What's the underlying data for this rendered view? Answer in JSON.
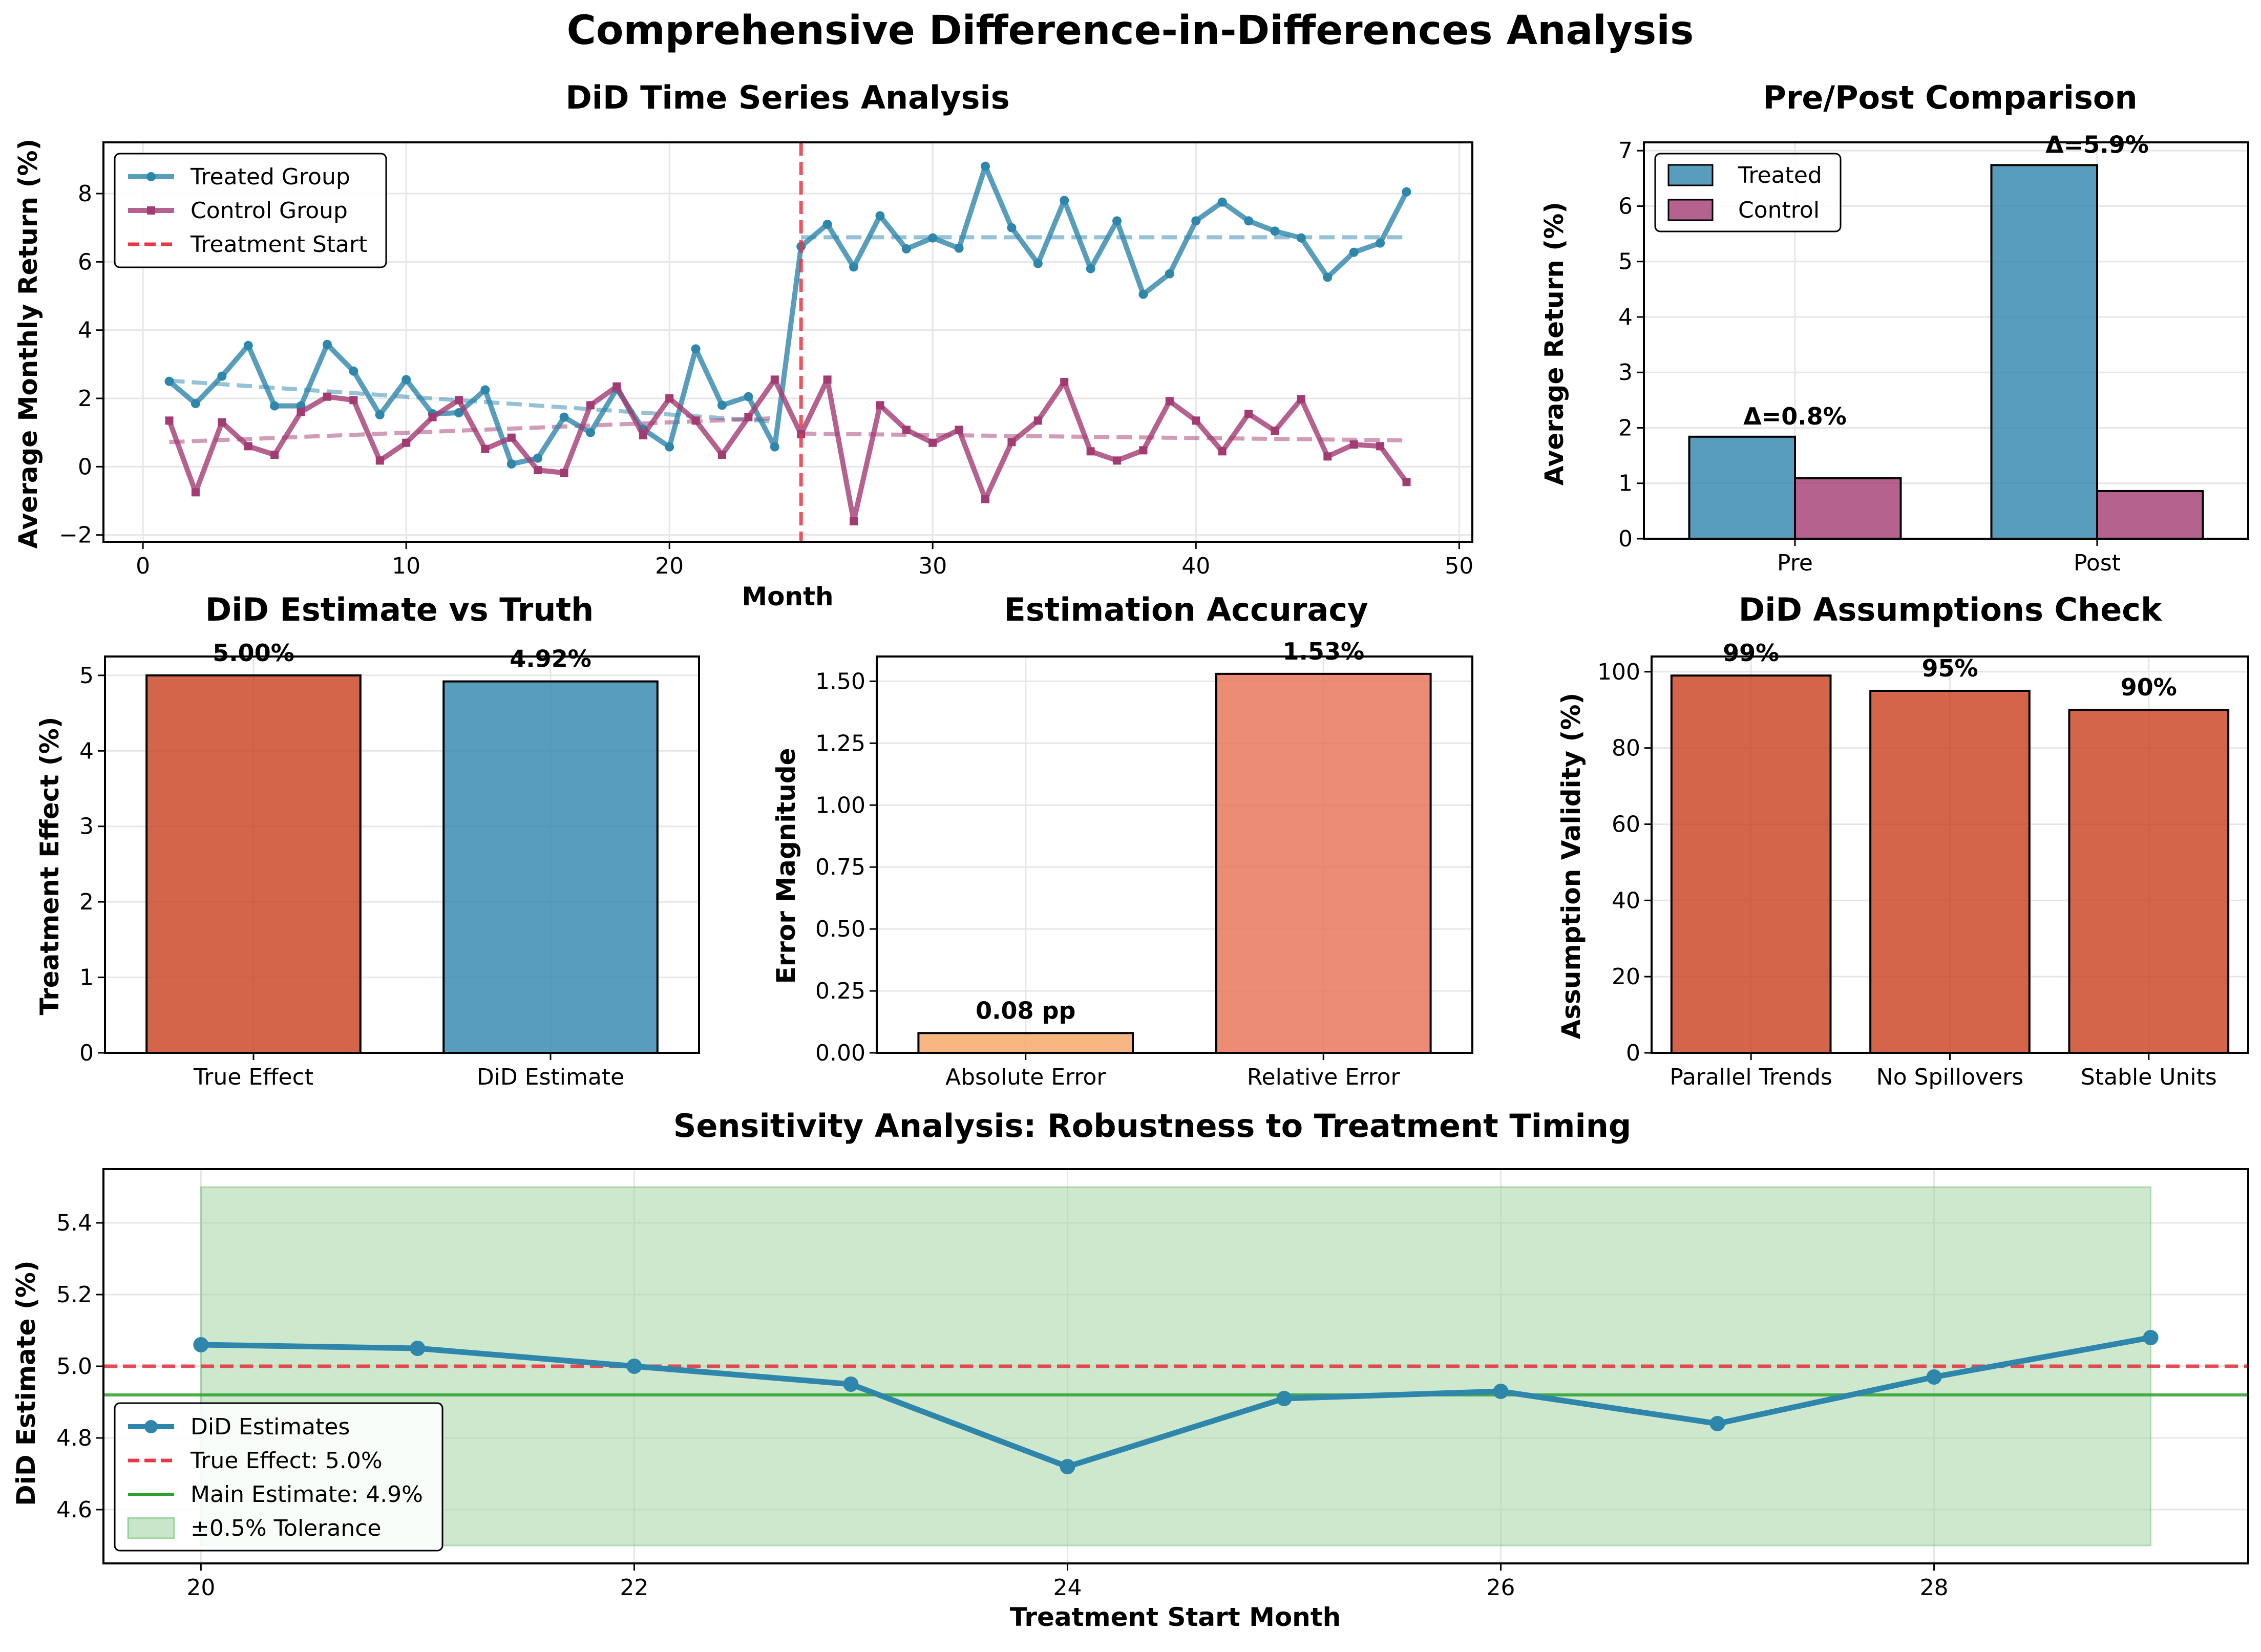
{
  "figure": {
    "suptitle": "Comprehensive Difference-in-Differences Analysis"
  },
  "colors": {
    "treated": "#2E86AB",
    "control": "#A23B72",
    "treatment_line": "#E63946",
    "true_effect_bar": "#C73E1D",
    "abs_error": "#F4A261",
    "rel_error": "#E76F51",
    "green": "#2CA02C",
    "tolerance_fill": "#A6D5A6"
  },
  "chart_data": [
    {
      "type": "line",
      "title": "DiD Time Series Analysis",
      "xlabel": "Month",
      "ylabel": "Average Monthly Return (%)",
      "xlim": [
        -1.5,
        50.5
      ],
      "ylim": [
        -2.2,
        9.5
      ],
      "xticks": [
        0,
        10,
        20,
        30,
        40,
        50
      ],
      "yticks": [
        -2,
        0,
        2,
        4,
        6,
        8
      ],
      "grid": true,
      "legend_position": "upper-left",
      "legend": [
        "Treated Group",
        "Control Group",
        "Treatment Start"
      ],
      "x": [
        1,
        2,
        3,
        4,
        5,
        6,
        7,
        8,
        9,
        10,
        11,
        12,
        13,
        14,
        15,
        16,
        17,
        18,
        19,
        20,
        21,
        22,
        23,
        24,
        25,
        26,
        27,
        28,
        29,
        30,
        31,
        32,
        33,
        34,
        35,
        36,
        37,
        38,
        39,
        40,
        41,
        42,
        43,
        44,
        45,
        46,
        47,
        48
      ],
      "series": [
        {
          "name": "Treated Group",
          "values": [
            2.5,
            1.85,
            2.65,
            3.55,
            1.78,
            1.78,
            3.58,
            2.8,
            1.52,
            2.55,
            1.55,
            1.58,
            2.25,
            0.08,
            0.25,
            1.45,
            1.0,
            2.28,
            1.1,
            0.58,
            3.45,
            1.8,
            2.05,
            0.58,
            6.45,
            7.1,
            5.85,
            7.35,
            6.38,
            6.7,
            6.4,
            8.8,
            7.0,
            5.95,
            7.8,
            5.8,
            7.2,
            5.05,
            5.65,
            7.2,
            7.75,
            7.2,
            6.9,
            6.7,
            5.55,
            6.28,
            6.55,
            8.05
          ]
        },
        {
          "name": "Control Group",
          "values": [
            1.35,
            -0.75,
            1.3,
            0.6,
            0.35,
            1.6,
            2.05,
            1.95,
            0.18,
            0.7,
            1.45,
            1.95,
            0.52,
            0.85,
            -0.1,
            -0.18,
            1.8,
            2.35,
            0.92,
            2.0,
            1.35,
            0.35,
            1.45,
            2.55,
            0.95,
            2.55,
            -1.6,
            1.8,
            1.08,
            0.7,
            1.08,
            -0.95,
            0.72,
            1.35,
            2.48,
            0.45,
            0.18,
            0.48,
            1.92,
            1.35,
            0.45,
            1.55,
            1.05,
            1.98,
            0.3,
            0.65,
            0.6,
            -0.45
          ]
        }
      ],
      "trends": {
        "treated_pre": {
          "x": [
            1,
            24
          ],
          "y": [
            2.52,
            1.32
          ]
        },
        "treated_post": {
          "x": [
            25,
            48
          ],
          "y": [
            6.72,
            6.72
          ]
        },
        "control_pre": {
          "x": [
            1,
            24
          ],
          "y": [
            0.72,
            1.42
          ]
        },
        "control_post": {
          "x": [
            25,
            48
          ],
          "y": [
            0.97,
            0.77
          ]
        }
      },
      "treatment_start": 25
    },
    {
      "type": "bar",
      "title": "Pre/Post Comparison",
      "ylabel": "Average Return (%)",
      "categories": [
        "Pre",
        "Post"
      ],
      "ylim": [
        0,
        7.15
      ],
      "yticks": [
        0,
        1,
        2,
        3,
        4,
        5,
        6,
        7
      ],
      "grid": true,
      "legend_position": "upper-left",
      "series": [
        {
          "name": "Treated",
          "values": [
            1.84,
            6.74
          ]
        },
        {
          "name": "Control",
          "values": [
            1.09,
            0.86
          ]
        }
      ],
      "annotations": [
        "Δ=0.8%",
        "Δ=5.9%"
      ]
    },
    {
      "type": "bar",
      "title": "DiD Estimate vs Truth",
      "ylabel": "Treatment Effect (%)",
      "categories": [
        "True Effect",
        "DiD Estimate"
      ],
      "values": [
        5.0,
        4.92
      ],
      "labels": [
        "5.00%",
        "4.92%"
      ],
      "ylim": [
        0,
        5.25
      ],
      "yticks": [
        0,
        1,
        2,
        3,
        4,
        5
      ],
      "grid": true
    },
    {
      "type": "bar",
      "title": "Estimation Accuracy",
      "ylabel": "Error Magnitude",
      "categories": [
        "Absolute Error",
        "Relative Error"
      ],
      "values": [
        0.08,
        1.53
      ],
      "labels": [
        "0.08 pp",
        "1.53%"
      ],
      "ylim": [
        0,
        1.6
      ],
      "yticks": [
        "0.00",
        "0.25",
        "0.50",
        "0.75",
        "1.00",
        "1.25",
        "1.50"
      ],
      "grid": true
    },
    {
      "type": "bar",
      "title": "DiD Assumptions Check",
      "ylabel": "Assumption Validity (%)",
      "categories": [
        "Parallel Trends",
        "No Spillovers",
        "Stable Units"
      ],
      "values": [
        99,
        95,
        90
      ],
      "labels": [
        "99%",
        "95%",
        "90%"
      ],
      "ylim": [
        0,
        104
      ],
      "yticks": [
        0,
        20,
        40,
        60,
        80,
        100
      ],
      "grid": true
    },
    {
      "type": "line",
      "title": "Sensitivity Analysis: Robustness to Treatment Timing",
      "xlabel": "Treatment Start Month",
      "ylabel": "DiD Estimate (%)",
      "x": [
        20,
        21,
        22,
        23,
        24,
        25,
        26,
        27,
        28,
        29
      ],
      "xlim": [
        19.55,
        29.45
      ],
      "ylim": [
        4.45,
        5.55
      ],
      "xticks": [
        20,
        22,
        24,
        26,
        28
      ],
      "yticks": [
        "4.6",
        "4.8",
        "5.0",
        "5.2",
        "5.4"
      ],
      "grid": true,
      "legend_position": "lower-left",
      "series": [
        {
          "name": "DiD Estimates",
          "values": [
            5.06,
            5.05,
            5.0,
            4.95,
            4.72,
            4.91,
            4.93,
            4.84,
            4.97,
            5.08
          ]
        }
      ],
      "true_effect": 5.0,
      "main_estimate": 4.92,
      "tolerance_band": [
        4.5,
        5.5
      ],
      "legend": [
        "DiD Estimates",
        "True Effect: 5.0%",
        "Main Estimate: 4.9%",
        "±0.5% Tolerance"
      ]
    }
  ]
}
